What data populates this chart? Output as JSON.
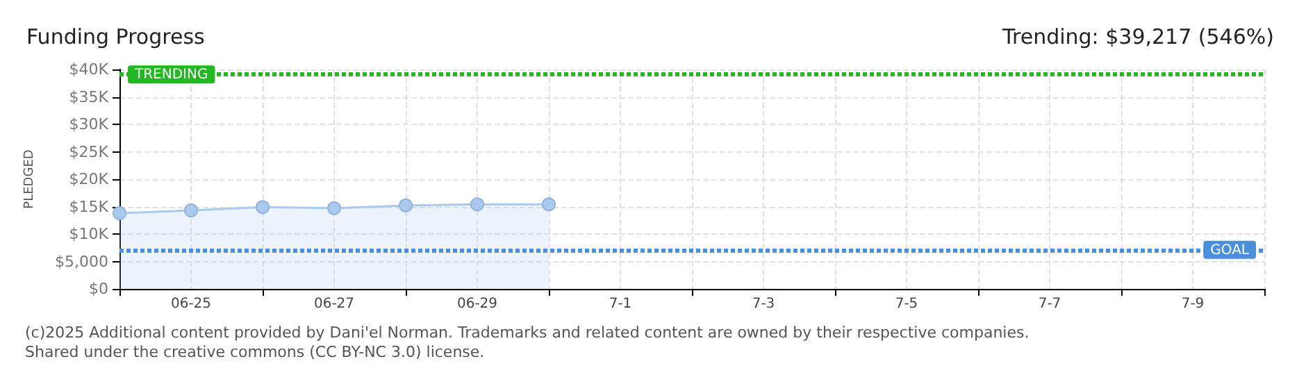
{
  "chart_data": {
    "type": "area",
    "title": "Funding Progress",
    "subtitle": "Trending: $39,217 (546%)",
    "ylabel": "PLEDGED",
    "categories": [
      null,
      "06-25",
      null,
      "06-27",
      null,
      "06-29",
      null,
      "7-1",
      null,
      "7-3",
      null,
      "7-5",
      null,
      "7-7",
      null,
      "7-9",
      null
    ],
    "series": [
      {
        "color": "#a9c9ee",
        "values": [
          13800,
          14300,
          14900,
          14700,
          15200,
          15400,
          15400,
          null,
          null,
          null,
          null,
          null,
          null,
          null,
          null,
          null,
          null
        ]
      }
    ],
    "ylim": [
      0,
      40000
    ],
    "yticks": [
      {
        "value": 0,
        "label": "$0"
      },
      {
        "value": 5000,
        "label": "$5,000"
      },
      {
        "value": 10000,
        "label": "$10K"
      },
      {
        "value": 15000,
        "label": "$15K"
      },
      {
        "value": 20000,
        "label": "$20K"
      },
      {
        "value": 25000,
        "label": "$25K"
      },
      {
        "value": 30000,
        "label": "$30K"
      },
      {
        "value": 35000,
        "label": "$35K"
      },
      {
        "value": 40000,
        "label": "$40K"
      }
    ],
    "ref_lines": [
      {
        "axis": "y",
        "value": 39217,
        "label": "TRENDING",
        "color": "#22b822",
        "line_style": "dotted"
      },
      {
        "axis": "y",
        "value": 7000,
        "label": "GOAL",
        "color": "#4a8fdc",
        "line_style": "dotted"
      }
    ],
    "grid": true,
    "marker": "circle",
    "annotations": [
      "(c)2025 Additional content provided by Dani'el Norman. Trademarks and related content are owned by their respective companies.",
      "Shared under the creative commons (CC BY-NC 3.0) license."
    ]
  }
}
